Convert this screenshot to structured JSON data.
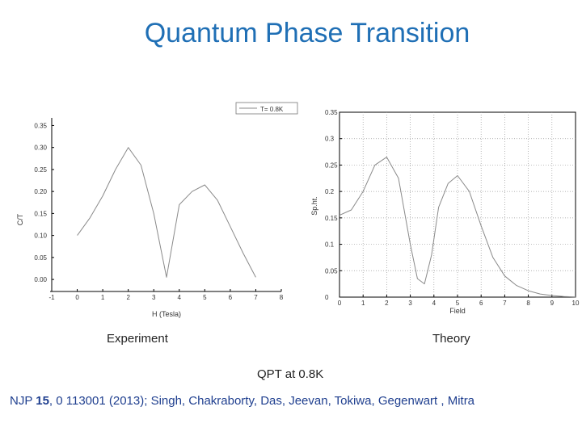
{
  "title": "Quantum Phase Transition",
  "chart_data": [
    {
      "type": "line",
      "panel": "experiment",
      "legend": "T= 0.8K",
      "xlabel": "H (Tesla)",
      "ylabel": "C/T",
      "xlim": [
        -1,
        8
      ],
      "ylim": [
        -0.02,
        0.36
      ],
      "xticks": [
        "-1",
        "0",
        "1",
        "2",
        "3",
        "4",
        "5",
        "6",
        "7",
        "8"
      ],
      "yticks": [
        "0.00",
        "0.05",
        "0.10",
        "0.15",
        "0.20",
        "0.25",
        "0.30",
        "0.35"
      ],
      "series": [
        {
          "x": [
            0.0,
            0.5,
            1.0,
            1.5,
            2.0,
            2.5,
            3.0,
            3.5,
            4.0,
            4.5,
            5.0,
            5.5,
            6.0,
            6.5,
            7.0
          ],
          "y": [
            0.1,
            0.14,
            0.19,
            0.25,
            0.3,
            0.26,
            0.15,
            0.005,
            0.17,
            0.2,
            0.215,
            0.18,
            0.12,
            0.06,
            0.005
          ]
        }
      ]
    },
    {
      "type": "line",
      "panel": "theory",
      "xlabel": "Field",
      "ylabel": "Sp.ht.",
      "xlim": [
        0,
        10
      ],
      "ylim": [
        0,
        0.35
      ],
      "xticks": [
        "0",
        "1",
        "2",
        "3",
        "4",
        "5",
        "6",
        "7",
        "8",
        "9",
        "10"
      ],
      "yticks": [
        "0",
        "0.05",
        "0.1",
        "0.15",
        "0.2",
        "0.25",
        "0.3",
        "0.35"
      ],
      "grid": true,
      "series": [
        {
          "x": [
            0,
            0.5,
            1.0,
            1.5,
            2.0,
            2.5,
            3.0,
            3.3,
            3.6,
            3.9,
            4.2,
            4.6,
            5.0,
            5.5,
            6.0,
            6.5,
            7.0,
            7.5,
            8.0,
            8.5,
            9.0,
            9.5,
            10.0
          ],
          "y": [
            0.155,
            0.165,
            0.2,
            0.25,
            0.265,
            0.225,
            0.1,
            0.035,
            0.025,
            0.08,
            0.17,
            0.215,
            0.23,
            0.2,
            0.135,
            0.075,
            0.04,
            0.022,
            0.012,
            0.006,
            0.003,
            0.001,
            0.0005
          ]
        }
      ]
    }
  ],
  "captions": {
    "experiment": "Experiment",
    "theory": "Theory",
    "qpt": "QPT at 0.8K"
  },
  "reference": {
    "prefix": "NJP ",
    "volume": "15",
    "rest": ", 0 113001 (2013); Singh, Chakraborty, Das, Jeevan, Tokiwa, Gegenwart , Mitra"
  },
  "colors": {
    "title": "#1f6fb5",
    "line": "#8a8a8a",
    "reference": "#1f3f8f"
  }
}
